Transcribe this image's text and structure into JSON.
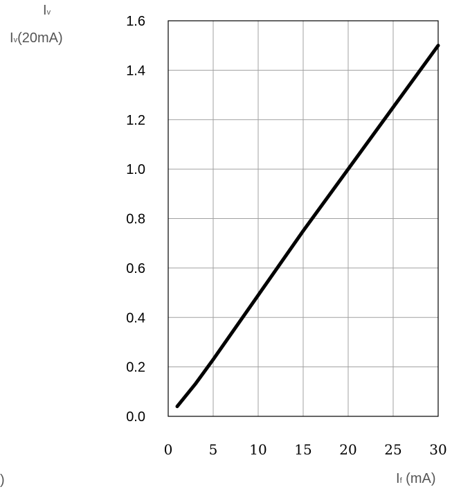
{
  "chart_data": {
    "type": "line",
    "title": "",
    "ylabel_main": {
      "base": "I",
      "sub": "v"
    },
    "ylabel_denom": {
      "base": "I",
      "sub": "v",
      "rest": "(20mA)"
    },
    "xlabel": {
      "base": "I",
      "sub": "f",
      "rest": " (mA)"
    },
    "stray_text": ")",
    "xlim": [
      0,
      30
    ],
    "ylim": [
      0.0,
      1.6
    ],
    "x_ticks": [
      0,
      5,
      10,
      15,
      20,
      25,
      30
    ],
    "x_tick_labels": [
      "0",
      "5",
      "10",
      "15",
      "20",
      "25",
      "30"
    ],
    "y_ticks": [
      0.0,
      0.2,
      0.4,
      0.6,
      0.8,
      1.0,
      1.2,
      1.4,
      1.6
    ],
    "y_tick_labels": [
      "0.0",
      "0.2",
      "0.4",
      "0.6",
      "0.8",
      "1.0",
      "1.2",
      "1.4",
      "1.6"
    ],
    "grid": true,
    "line_color": "#000000",
    "grid_color": "#a0a0a0",
    "series": [
      {
        "x": [
          1,
          3,
          5,
          10,
          15,
          20,
          25,
          30
        ],
        "y": [
          0.04,
          0.13,
          0.23,
          0.49,
          0.75,
          1.0,
          1.25,
          1.5
        ]
      }
    ]
  }
}
